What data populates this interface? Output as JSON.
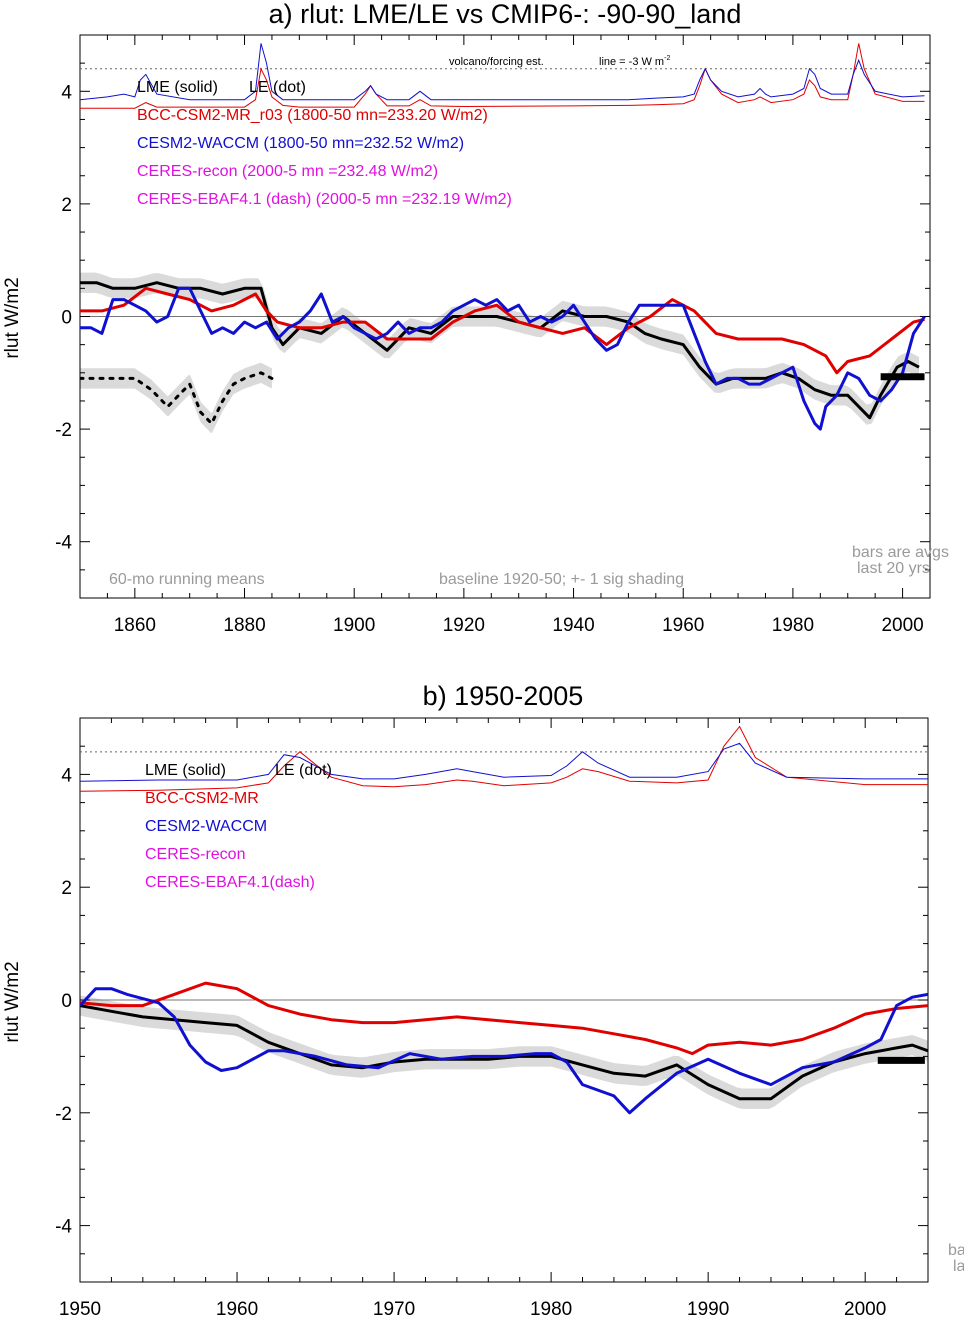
{
  "chart_data": [
    {
      "type": "line",
      "title": "a) rlut: LME/LE vs CMIP6-: -90-90_land",
      "ylabel": "rlut W/m2",
      "xlim": [
        1850,
        2005
      ],
      "ylim": [
        -5,
        5
      ],
      "x_ticks": [
        "1860",
        "1880",
        "1900",
        "1920",
        "1940",
        "1960",
        "1980",
        "2000"
      ],
      "y_ticks": [
        "4",
        "2",
        "0",
        "-2",
        "-4"
      ],
      "legend": [
        {
          "text": "LME (solid)",
          "color": "#000000"
        },
        {
          "text": "LE (dot)",
          "color": "#000000"
        },
        {
          "text": "BCC-CSM2-MR_r03 (1800-50 mn=233.20 W/m2)",
          "color": "#e00000"
        },
        {
          "text": "CESM2-WACCM (1800-50 mn=232.52 W/m2)",
          "color": "#1010d0"
        },
        {
          "text": "CERES-recon (2000-5 mn =232.48 W/m2)",
          "color": "#e010e0"
        },
        {
          "text": "CERES-EBAF4.1 (dash) (2000-5 mn =232.19 W/m2)",
          "color": "#e010e0"
        }
      ],
      "annotations": {
        "volcano": "volcano/forcing est.",
        "line_ref": "line = -3 W m",
        "line_ref_sup": "-2",
        "running": "60-mo running means",
        "baseline": "baseline 1920-50; +- 1 sig shading",
        "bars1": "bars are avgs",
        "bars2": "last 20 yrs"
      },
      "volcano_reference_level": 4.4,
      "series": [
        {
          "name": "LME (solid)",
          "color": "#000000",
          "x": [
            1850,
            1853,
            1856,
            1860,
            1864,
            1868,
            1872,
            1876,
            1880,
            1883,
            1885,
            1887,
            1890,
            1894,
            1898,
            1902,
            1906,
            1910,
            1914,
            1918,
            1922,
            1926,
            1930,
            1934,
            1938,
            1942,
            1946,
            1950,
            1953,
            1956,
            1960,
            1963,
            1966,
            1969,
            1972,
            1975,
            1978,
            1981,
            1984,
            1987,
            1990,
            1992,
            1994,
            1996,
            1999,
            2001,
            2003
          ],
          "y": [
            0.6,
            0.6,
            0.5,
            0.5,
            0.6,
            0.5,
            0.5,
            0.4,
            0.5,
            0.5,
            -0.2,
            -0.5,
            -0.2,
            -0.3,
            0.0,
            -0.3,
            -0.6,
            -0.2,
            -0.3,
            0.0,
            0.0,
            0.0,
            -0.1,
            -0.2,
            0.1,
            0.0,
            0.0,
            -0.1,
            -0.3,
            -0.4,
            -0.5,
            -0.9,
            -1.2,
            -1.1,
            -1.1,
            -1.1,
            -1.0,
            -1.1,
            -1.3,
            -1.4,
            -1.4,
            -1.6,
            -1.8,
            -1.4,
            -0.9,
            -0.8,
            -0.9
          ]
        },
        {
          "name": "LE (dot)",
          "color": "#000000",
          "x": [
            1850,
            1855,
            1860,
            1863,
            1866,
            1868,
            1870,
            1872,
            1874,
            1876,
            1878,
            1880,
            1883,
            1885
          ],
          "y": [
            -1.1,
            -1.1,
            -1.1,
            -1.3,
            -1.6,
            -1.4,
            -1.2,
            -1.7,
            -1.9,
            -1.5,
            -1.2,
            -1.1,
            -1.0,
            -1.1
          ]
        },
        {
          "name": "BCC-CSM2-MR_r03",
          "color": "#e00000",
          "x": [
            1850,
            1854,
            1858,
            1862,
            1866,
            1870,
            1874,
            1878,
            1882,
            1884,
            1886,
            1890,
            1894,
            1898,
            1902,
            1906,
            1910,
            1914,
            1918,
            1922,
            1926,
            1930,
            1934,
            1938,
            1942,
            1946,
            1950,
            1954,
            1958,
            1962,
            1966,
            1970,
            1974,
            1978,
            1982,
            1986,
            1988,
            1990,
            1994,
            1998,
            2002,
            2004
          ],
          "y": [
            0.1,
            0.1,
            0.2,
            0.5,
            0.4,
            0.3,
            0.1,
            0.2,
            0.4,
            0.1,
            -0.1,
            -0.2,
            -0.2,
            -0.1,
            -0.1,
            -0.4,
            -0.4,
            -0.4,
            -0.1,
            0.1,
            0.2,
            -0.1,
            -0.2,
            -0.3,
            -0.2,
            -0.5,
            -0.2,
            0.0,
            0.3,
            0.1,
            -0.3,
            -0.4,
            -0.4,
            -0.4,
            -0.5,
            -0.7,
            -1.0,
            -0.8,
            -0.7,
            -0.4,
            -0.1,
            -0.05
          ]
        },
        {
          "name": "CESM2-WACCM",
          "color": "#1010d0",
          "x": [
            1850,
            1852,
            1854,
            1856,
            1858,
            1860,
            1862,
            1864,
            1866,
            1868,
            1870,
            1872,
            1874,
            1876,
            1878,
            1880,
            1882,
            1884,
            1886,
            1888,
            1890,
            1892,
            1894,
            1896,
            1898,
            1900,
            1902,
            1904,
            1906,
            1908,
            1910,
            1912,
            1914,
            1916,
            1918,
            1920,
            1922,
            1924,
            1926,
            1928,
            1930,
            1932,
            1934,
            1936,
            1938,
            1940,
            1942,
            1944,
            1946,
            1948,
            1950,
            1952,
            1954,
            1956,
            1958,
            1960,
            1962,
            1964,
            1966,
            1968,
            1970,
            1972,
            1974,
            1976,
            1978,
            1980,
            1982,
            1984,
            1985,
            1986,
            1988,
            1990,
            1992,
            1994,
            1996,
            1998,
            2000,
            2002,
            2004
          ],
          "y": [
            -0.2,
            -0.2,
            -0.3,
            0.3,
            0.3,
            0.2,
            0.1,
            -0.1,
            0.0,
            0.5,
            0.5,
            0.1,
            -0.3,
            -0.2,
            -0.3,
            -0.1,
            -0.2,
            -0.1,
            -0.4,
            -0.2,
            -0.1,
            0.1,
            0.4,
            -0.1,
            0.0,
            -0.2,
            -0.3,
            -0.4,
            -0.3,
            -0.1,
            -0.3,
            -0.2,
            -0.2,
            -0.1,
            0.1,
            0.2,
            0.3,
            0.2,
            0.3,
            0.1,
            0.2,
            -0.1,
            0.0,
            -0.1,
            0.0,
            0.2,
            -0.1,
            -0.4,
            -0.6,
            -0.5,
            -0.1,
            0.2,
            0.2,
            0.2,
            0.2,
            0.2,
            -0.3,
            -0.8,
            -1.2,
            -1.1,
            -1.1,
            -1.2,
            -1.2,
            -1.1,
            -1.0,
            -0.9,
            -1.5,
            -1.9,
            -2.0,
            -1.6,
            -1.4,
            -1.0,
            -1.1,
            -1.4,
            -1.5,
            -1.3,
            -1.0,
            -0.3,
            0.0
          ]
        }
      ],
      "bars": [
        {
          "x0": 1996,
          "x1": 2004,
          "y": -1.07
        }
      ],
      "forcing_lines": [
        {
          "name": "BCC-CSM2-MR_r03",
          "color": "#e00000",
          "x": [
            1850,
            1860,
            1862,
            1864,
            1870,
            1880,
            1882,
            1883,
            1884,
            1885,
            1887,
            1890,
            1900,
            1902,
            1903,
            1904,
            1906,
            1910,
            1912,
            1914,
            1920,
            1940,
            1950,
            1955,
            1960,
            1962,
            1963,
            1964,
            1965,
            1967,
            1970,
            1973,
            1974,
            1975,
            1976,
            1980,
            1982,
            1983,
            1984,
            1985,
            1987,
            1990,
            1991,
            1992,
            1993,
            1995,
            2000,
            2004
          ],
          "y": [
            3.7,
            3.7,
            3.8,
            3.72,
            3.72,
            3.72,
            3.85,
            4.4,
            4.2,
            3.9,
            3.75,
            3.72,
            3.72,
            3.95,
            4.1,
            3.95,
            3.74,
            3.74,
            3.85,
            3.74,
            3.73,
            3.74,
            3.75,
            3.76,
            3.78,
            3.85,
            4.1,
            4.4,
            4.2,
            3.95,
            3.8,
            3.85,
            3.9,
            3.85,
            3.8,
            3.85,
            3.95,
            4.2,
            4.1,
            3.9,
            3.85,
            3.85,
            4.3,
            4.85,
            4.4,
            3.95,
            3.82,
            3.82
          ]
        },
        {
          "name": "CESM2-WACCM",
          "color": "#1010d0",
          "x": [
            1850,
            1855,
            1858,
            1860,
            1861,
            1862,
            1864,
            1870,
            1880,
            1882,
            1883,
            1884,
            1885,
            1887,
            1890,
            1900,
            1902,
            1903,
            1904,
            1906,
            1910,
            1912,
            1914,
            1920,
            1940,
            1950,
            1955,
            1960,
            1962,
            1963,
            1964,
            1965,
            1967,
            1970,
            1973,
            1974,
            1975,
            1976,
            1980,
            1982,
            1983,
            1984,
            1985,
            1987,
            1990,
            1991,
            1992,
            1993,
            1995,
            2000,
            2004
          ],
          "y": [
            3.85,
            3.9,
            3.95,
            3.9,
            4.2,
            4.3,
            3.95,
            3.85,
            3.85,
            4.0,
            4.85,
            4.5,
            4.0,
            3.85,
            3.85,
            3.85,
            4.0,
            4.1,
            3.95,
            3.85,
            3.85,
            4.0,
            3.85,
            3.85,
            3.85,
            3.85,
            3.88,
            3.9,
            3.95,
            4.2,
            4.4,
            4.2,
            4.0,
            3.9,
            3.95,
            4.05,
            3.95,
            3.9,
            3.95,
            4.05,
            4.4,
            4.3,
            4.05,
            3.95,
            3.95,
            4.3,
            4.55,
            4.3,
            4.0,
            3.9,
            3.92
          ]
        }
      ]
    },
    {
      "type": "line",
      "title": "b) 1950-2005",
      "ylabel": "rlut W/m2",
      "xlim": [
        1950,
        2004
      ],
      "ylim": [
        -5,
        5
      ],
      "x_ticks": [
        "1950",
        "1960",
        "1970",
        "1980",
        "1990",
        "2000"
      ],
      "y_ticks": [
        "4",
        "2",
        "0",
        "-2",
        "-4"
      ],
      "legend": [
        {
          "text": "LME (solid)",
          "color": "#000000"
        },
        {
          "text": "LE (dot)",
          "color": "#000000"
        },
        {
          "text": "BCC-CSM2-MR",
          "color": "#e00000"
        },
        {
          "text": "CESM2-WACCM",
          "color": "#1010d0"
        },
        {
          "text": "CERES-recon",
          "color": "#e010e0"
        },
        {
          "text": "CERES-EBAF4.1(dash)",
          "color": "#e010e0"
        }
      ],
      "annotations": {
        "bars1": "ba",
        "bars2": "la"
      },
      "volcano_reference_level": 4.4,
      "series": [
        {
          "name": "LME (solid)",
          "color": "#000000",
          "x": [
            1950,
            1952,
            1954,
            1956,
            1958,
            1960,
            1962,
            1964,
            1966,
            1968,
            1970,
            1972,
            1974,
            1976,
            1978,
            1980,
            1982,
            1984,
            1986,
            1988,
            1990,
            1992,
            1994,
            1996,
            1998,
            2000,
            2002,
            2003,
            2004
          ],
          "y": [
            -0.1,
            -0.2,
            -0.3,
            -0.35,
            -0.4,
            -0.45,
            -0.75,
            -0.95,
            -1.15,
            -1.2,
            -1.1,
            -1.05,
            -1.05,
            -1.05,
            -1.0,
            -1.0,
            -1.15,
            -1.3,
            -1.35,
            -1.15,
            -1.5,
            -1.75,
            -1.75,
            -1.35,
            -1.1,
            -0.95,
            -0.85,
            -0.8,
            -0.9
          ]
        },
        {
          "name": "BCC-CSM2-MR",
          "color": "#e00000",
          "x": [
            1950,
            1952,
            1954,
            1956,
            1958,
            1960,
            1962,
            1964,
            1966,
            1968,
            1970,
            1972,
            1974,
            1976,
            1978,
            1980,
            1982,
            1984,
            1986,
            1988,
            1989,
            1990,
            1992,
            1994,
            1996,
            1998,
            2000,
            2002,
            2004
          ],
          "y": [
            -0.05,
            -0.1,
            -0.1,
            0.1,
            0.3,
            0.2,
            -0.1,
            -0.25,
            -0.35,
            -0.4,
            -0.4,
            -0.35,
            -0.3,
            -0.35,
            -0.4,
            -0.45,
            -0.5,
            -0.6,
            -0.7,
            -0.85,
            -0.95,
            -0.8,
            -0.75,
            -0.8,
            -0.7,
            -0.5,
            -0.25,
            -0.15,
            -0.1
          ]
        },
        {
          "name": "CESM2-WACCM",
          "color": "#1010d0",
          "x": [
            1950,
            1951,
            1952,
            1953,
            1955,
            1956,
            1957,
            1958,
            1959,
            1960,
            1962,
            1963,
            1965,
            1967,
            1969,
            1971,
            1973,
            1975,
            1977,
            1979,
            1980,
            1981,
            1982,
            1984,
            1985,
            1986,
            1988,
            1990,
            1992,
            1994,
            1996,
            1998,
            2000,
            2001,
            2002,
            2003,
            2004
          ],
          "y": [
            -0.1,
            0.2,
            0.2,
            0.1,
            -0.05,
            -0.3,
            -0.8,
            -1.1,
            -1.25,
            -1.2,
            -0.9,
            -0.9,
            -1.0,
            -1.15,
            -1.2,
            -0.95,
            -1.05,
            -1.0,
            -1.0,
            -0.95,
            -0.95,
            -1.1,
            -1.5,
            -1.7,
            -2.0,
            -1.75,
            -1.3,
            -1.05,
            -1.3,
            -1.5,
            -1.2,
            -1.1,
            -0.85,
            -0.7,
            -0.1,
            0.05,
            0.1
          ]
        }
      ],
      "bars": [
        {
          "x0": 2000.8,
          "x1": 2003.8,
          "y": -1.07
        }
      ],
      "forcing_lines": [
        {
          "name": "BCC-CSM2-MR",
          "color": "#e00000",
          "x": [
            1950,
            1955,
            1960,
            1962,
            1963,
            1964,
            1966,
            1968,
            1970,
            1972,
            1974,
            1975,
            1977,
            1980,
            1981,
            1982,
            1983,
            1985,
            1988,
            1990,
            1991,
            1992,
            1993,
            1995,
            2000,
            2004
          ],
          "y": [
            3.7,
            3.72,
            3.76,
            3.85,
            4.15,
            4.4,
            3.95,
            3.8,
            3.78,
            3.82,
            3.9,
            3.88,
            3.8,
            3.85,
            3.95,
            4.1,
            4.05,
            3.88,
            3.85,
            3.9,
            4.5,
            4.85,
            4.3,
            3.95,
            3.82,
            3.82
          ]
        },
        {
          "name": "CESM2-WACCM",
          "color": "#1010d0",
          "x": [
            1950,
            1955,
            1960,
            1962,
            1963,
            1964,
            1966,
            1968,
            1970,
            1972,
            1974,
            1975,
            1977,
            1980,
            1981,
            1982,
            1983,
            1985,
            1988,
            1990,
            1991,
            1992,
            1993,
            1995,
            2000,
            2004
          ],
          "y": [
            3.88,
            3.9,
            3.9,
            4.0,
            4.35,
            4.3,
            4.0,
            3.92,
            3.92,
            4.0,
            4.1,
            4.05,
            3.95,
            3.98,
            4.15,
            4.4,
            4.2,
            3.95,
            3.95,
            4.05,
            4.45,
            4.55,
            4.2,
            3.95,
            3.92,
            3.92
          ]
        }
      ]
    }
  ]
}
